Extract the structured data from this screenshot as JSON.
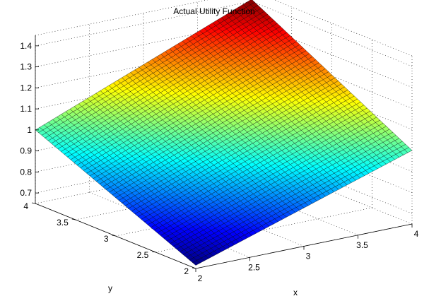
{
  "chart_data": {
    "type": "surface",
    "title": "Actual Utility Function",
    "xlabel": "x",
    "ylabel": "y",
    "zlabel": "",
    "xlim": [
      2,
      4
    ],
    "ylim": [
      2,
      4
    ],
    "zlim": [
      0.65,
      1.45
    ],
    "xticks": [
      "2",
      "2.5",
      "3",
      "3.5",
      "4"
    ],
    "yticks": [
      "2",
      "2.5",
      "3",
      "3.5",
      "4"
    ],
    "zticks": [
      "0.7",
      "0.8",
      "0.9",
      "1",
      "1.1",
      "1.2",
      "1.3",
      "1.4"
    ],
    "grid": true,
    "colormap": "jet",
    "grid_points": 50,
    "corners": {
      "x2_y2": 0.665,
      "x4_y2": 1.0,
      "x2_y4": 1.0,
      "x4_y4": 1.41
    }
  }
}
